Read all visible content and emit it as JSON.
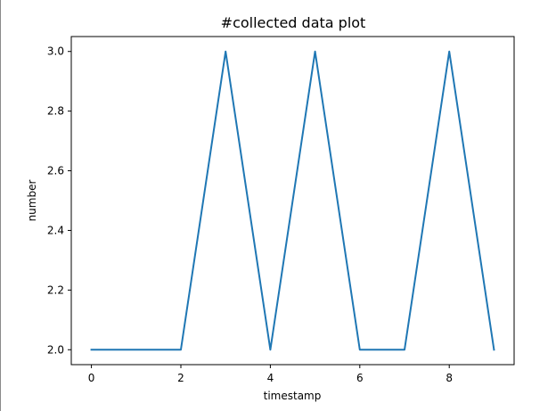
{
  "chart_data": {
    "type": "line",
    "title": "#collected data plot",
    "xlabel": "timestamp",
    "ylabel": "number",
    "xlim": [
      -0.45,
      9.45
    ],
    "ylim": [
      1.95,
      3.05
    ],
    "x_ticks": [
      0,
      2,
      4,
      6,
      8
    ],
    "x_tick_labels": [
      "0",
      "2",
      "4",
      "6",
      "8"
    ],
    "y_ticks": [
      2.0,
      2.2,
      2.4,
      2.6,
      2.8,
      3.0
    ],
    "y_tick_labels": [
      "2.0",
      "2.2",
      "2.4",
      "2.6",
      "2.8",
      "3.0"
    ],
    "grid": false,
    "series": [
      {
        "x": [
          0,
          1,
          2,
          3,
          4,
          5,
          6,
          7,
          8,
          9
        ],
        "y": [
          2,
          2,
          2,
          3,
          2,
          3,
          2,
          2,
          3,
          2
        ],
        "color": "#1f77b4"
      }
    ]
  }
}
